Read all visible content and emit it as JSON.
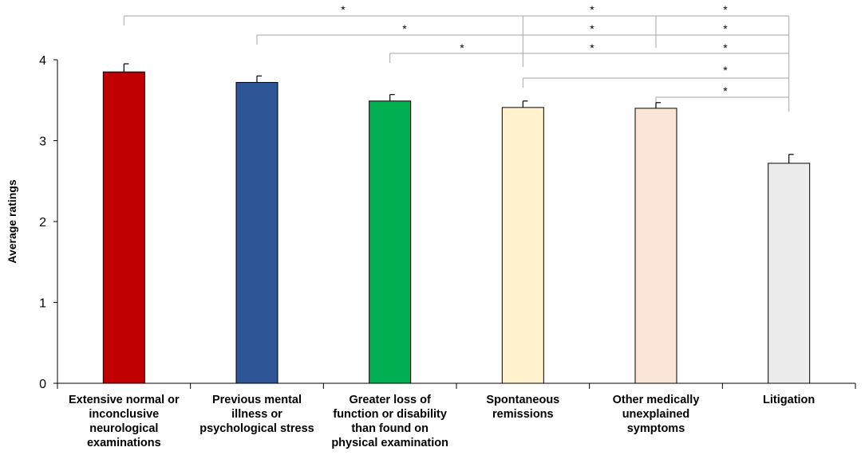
{
  "chart_data": {
    "type": "bar",
    "title": "",
    "xlabel": "",
    "ylabel": "Average ratings",
    "ylim": [
      0,
      4
    ],
    "yticks": [
      "0",
      "1",
      "2",
      "3",
      "4"
    ],
    "grid": false,
    "categories": [
      [
        "Extensive normal or",
        "inconclusive",
        "neurological",
        "examinations"
      ],
      [
        "Previous mental",
        "illness or",
        "psychological stress"
      ],
      [
        "Greater loss of",
        "function or disability",
        "than found on",
        "physical examination"
      ],
      [
        "Spontaneous",
        "remissions"
      ],
      [
        "Other medically",
        "unexplained",
        "symptoms"
      ],
      [
        "Litigation"
      ]
    ],
    "values": [
      3.85,
      3.72,
      3.49,
      3.41,
      3.4,
      2.72
    ],
    "errors": [
      0.1,
      0.08,
      0.08,
      0.08,
      0.07,
      0.11
    ],
    "colors": [
      "#c00000",
      "#2e5596",
      "#00b050",
      "#fff2cc",
      "#fbe5d6",
      "#ececec"
    ],
    "significance": [
      {
        "from": 0,
        "to": 5,
        "label": "*"
      },
      {
        "from": 3,
        "to": 5,
        "label": "*"
      },
      {
        "from": 4,
        "to": 5,
        "label": "*"
      },
      {
        "from": 1,
        "to": 5,
        "label": "*"
      },
      {
        "from": 3,
        "to": 5,
        "label": "*"
      },
      {
        "from": 4,
        "to": 5,
        "label": "*"
      },
      {
        "from": 2,
        "to": 5,
        "label": "*"
      },
      {
        "from": 3,
        "to": 5,
        "label": "*"
      },
      {
        "from": 4,
        "to": 5,
        "label": "*"
      },
      {
        "from": 3,
        "to": 5,
        "label": "*"
      },
      {
        "from": 4,
        "to": 5,
        "label": "*"
      }
    ]
  }
}
